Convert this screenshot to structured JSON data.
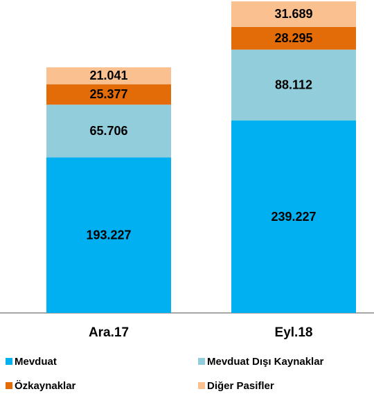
{
  "chart_data": {
    "type": "stacked_bar",
    "categories": [
      "Ara.17",
      "Eyl.18"
    ],
    "series": [
      {
        "name": "Mevduat",
        "color": "#00b0f0",
        "values": [
          193.227,
          239.227
        ]
      },
      {
        "name": "Mevduat Dışı Kaynaklar",
        "color": "#92cddc",
        "values": [
          65.706,
          88.112
        ]
      },
      {
        "name": "Özkaynaklar",
        "color": "#e36c09",
        "values": [
          25.377,
          28.295
        ]
      },
      {
        "name": "Diğer Pasifler",
        "color": "#fac090",
        "values": [
          21.041,
          31.689
        ]
      }
    ]
  }
}
